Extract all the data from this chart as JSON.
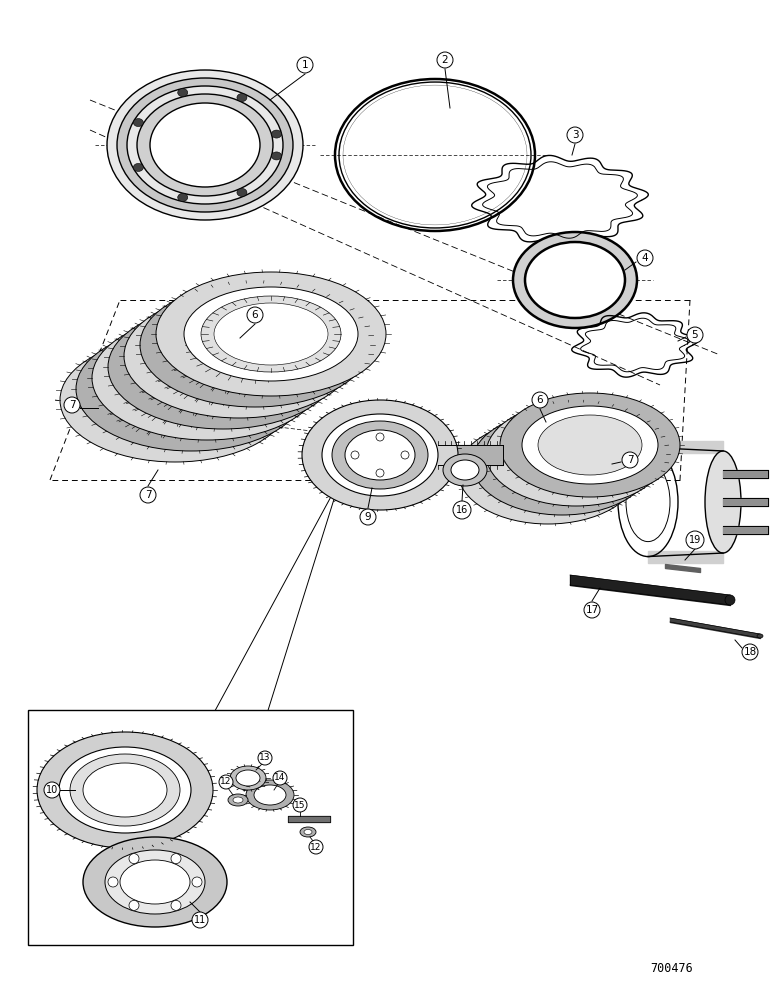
{
  "bg_color": "#ffffff",
  "line_color": "#000000",
  "figure_number": "700476",
  "fig_width": 7.72,
  "fig_height": 10.0,
  "dpi": 100
}
